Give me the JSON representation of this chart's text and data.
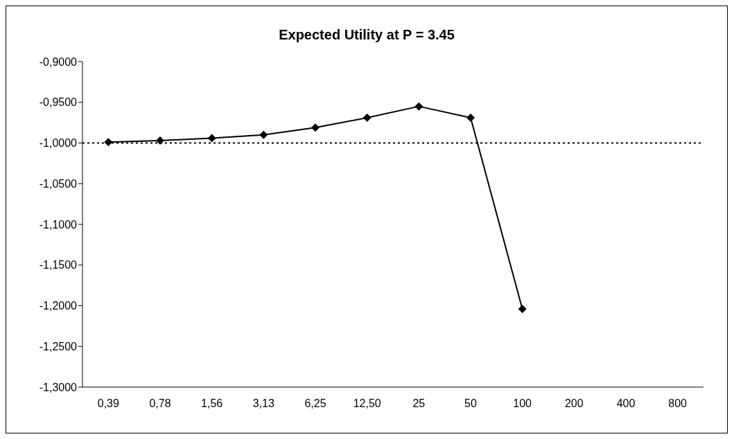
{
  "chart_data": {
    "type": "line",
    "title": "Expected Utility at P = 3.45",
    "categories": [
      "0,39",
      "0,78",
      "1,56",
      "3,13",
      "6,25",
      "12,50",
      "25",
      "50",
      "100",
      "200",
      "400",
      "800"
    ],
    "series": [
      {
        "color": "#000000",
        "values": [
          -0.999,
          -0.997,
          -0.994,
          -0.99,
          -0.981,
          -0.969,
          -0.955,
          -0.969,
          -1.204,
          null,
          null,
          null
        ]
      }
    ],
    "ylim": [
      -1.3,
      -0.9
    ],
    "yticks": [
      {
        "value": -1.3,
        "label": "-1,3000"
      },
      {
        "value": -1.25,
        "label": "-1,2500"
      },
      {
        "value": -1.2,
        "label": "-1,2000"
      },
      {
        "value": -1.15,
        "label": "-1,1500"
      },
      {
        "value": -1.1,
        "label": "-1,1000"
      },
      {
        "value": -1.05,
        "label": "-1,0500"
      },
      {
        "value": -1.0,
        "label": "-1,0000"
      },
      {
        "value": -0.95,
        "label": "-0,9500"
      },
      {
        "value": -0.9,
        "label": "-0,9000"
      }
    ],
    "ref_lines": [
      {
        "axis": "y",
        "value": -1.0,
        "color": "#000000",
        "line_style": "dotted"
      }
    ],
    "marker": "diamond"
  }
}
